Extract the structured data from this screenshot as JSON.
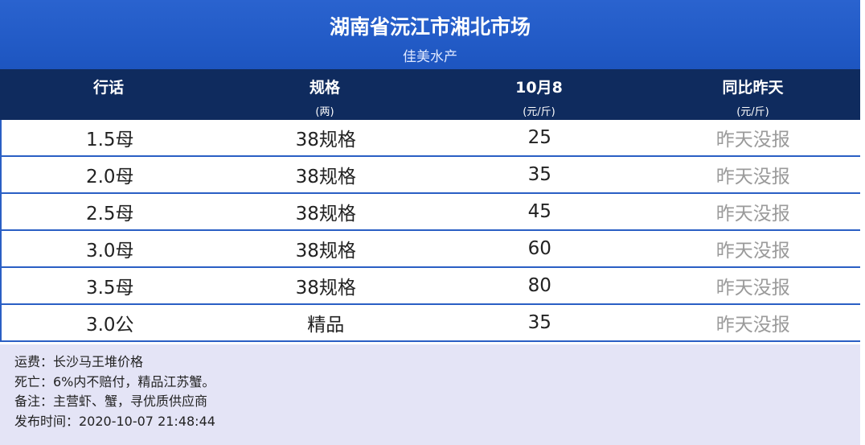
{
  "header": {
    "title": "湖南省沅江市湘北市场",
    "subtitle": "佳美水产"
  },
  "table": {
    "columns": [
      {
        "label": "行话"
      },
      {
        "label": "规格",
        "unit": "(两)"
      },
      {
        "label": "10月8",
        "unit": "(元/斤)"
      },
      {
        "label": "同比昨天",
        "unit": "(元/斤)"
      }
    ],
    "rows": [
      [
        "1.5母",
        "38规格",
        25,
        "昨天没报"
      ],
      [
        "2.0母",
        "38规格",
        35,
        "昨天没报"
      ],
      [
        "2.5母",
        "38规格",
        45,
        "昨天没报"
      ],
      [
        "3.0母",
        "38规格",
        60,
        "昨天没报"
      ],
      [
        "3.5母",
        "38规格",
        80,
        "昨天没报"
      ],
      [
        "3.0公",
        "精品",
        35,
        "昨天没报"
      ]
    ]
  },
  "notes": [
    "运费：长沙马王堆价格",
    "死亡：6%内不赔付，精品江苏蟹。",
    "备注：主营虾、蟹，寻优质供应商",
    "发布时间：2020-10-07  21:48:44"
  ]
}
